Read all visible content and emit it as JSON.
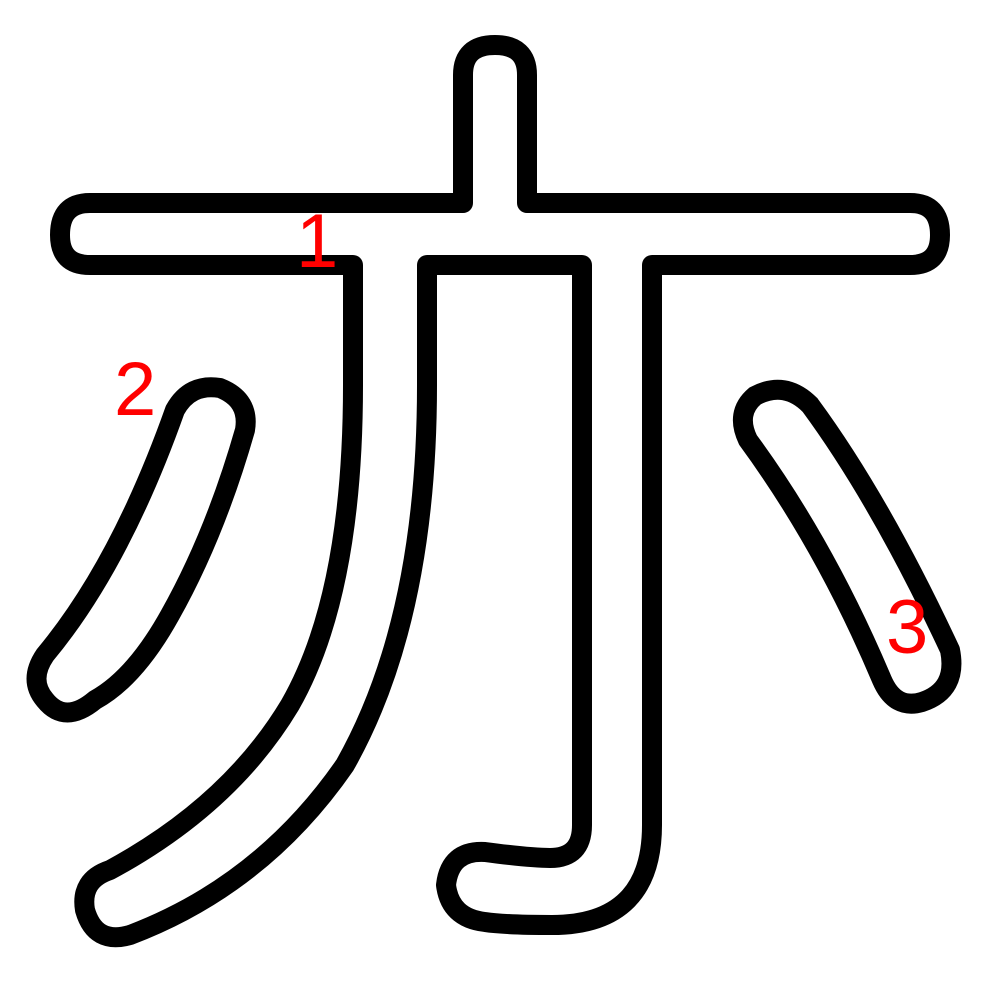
{
  "colors": {
    "outline": "#000000",
    "fill": "#ffffff",
    "label": "#ff0000"
  },
  "strokes": [
    {
      "number": "1",
      "part": "main-frame"
    },
    {
      "number": "2",
      "part": "left-dot"
    },
    {
      "number": "3",
      "part": "right-dot"
    }
  ]
}
